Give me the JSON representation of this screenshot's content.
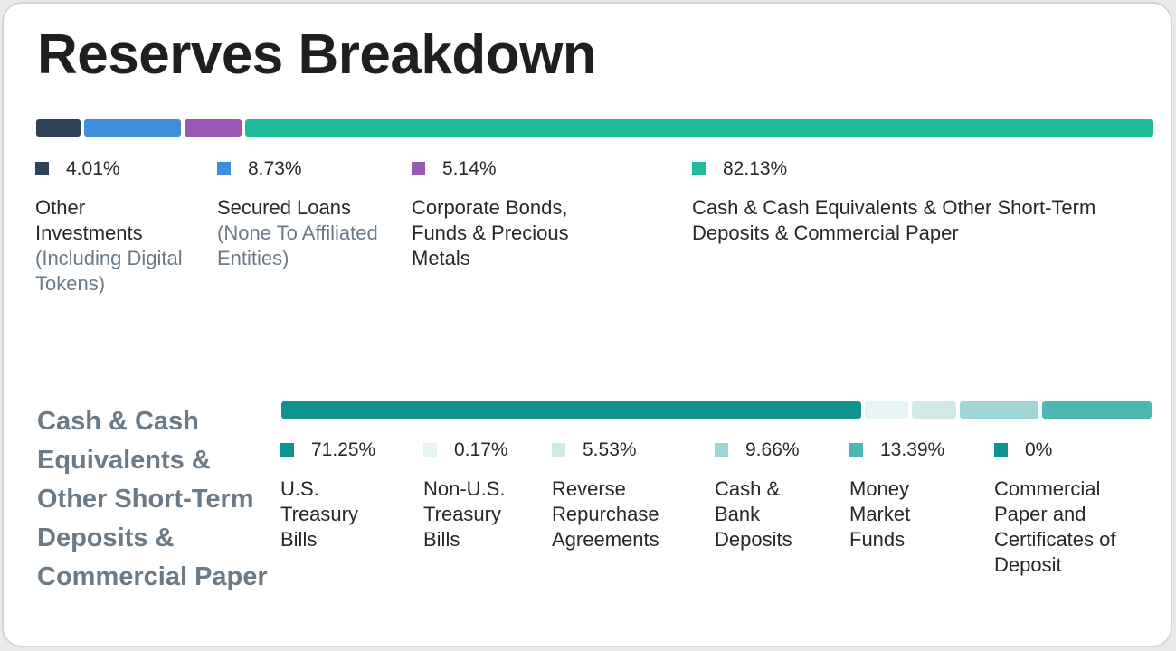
{
  "title": "Reserves Breakdown",
  "chart_data": [
    {
      "type": "bar",
      "orientation": "horizontal-stacked",
      "title": "Reserves Breakdown",
      "unit": "%",
      "categories": [
        "Other Investments (Including Digital Tokens)",
        "Secured Loans (None To Affiliated Entities)",
        "Corporate Bonds, Funds & Precious Metals",
        "Cash & Cash Equivalents & Other Short-Term Deposits & Commercial Paper"
      ],
      "values": [
        4.01,
        8.73,
        5.14,
        82.13
      ],
      "legend": [
        {
          "pct": "4.01%",
          "label_main": "Other Investments",
          "label_sub": "(Including Digital Tokens)",
          "color": "#2f4156"
        },
        {
          "pct": "8.73%",
          "label_main": "Secured Loans",
          "label_sub": "(None To Affiliated Entities)",
          "color": "#3d8fdb"
        },
        {
          "pct": "5.14%",
          "label_main": "Corporate Bonds, Funds & Precious Metals",
          "label_sub": "",
          "color": "#9b59b6"
        },
        {
          "pct": "82.13%",
          "label_main": "Cash & Cash Equivalents & Other Short-Term Deposits & Commercial Paper",
          "label_sub": "",
          "color": "#1fbc9c"
        }
      ]
    },
    {
      "type": "bar",
      "orientation": "horizontal-stacked",
      "title": "Cash & Cash Equivalents & Other Short-Term Deposits & Commercial Paper",
      "unit": "%",
      "categories": [
        "U.S. Treasury Bills",
        "Non-U.S. Treasury Bills",
        "Reverse Repurchase Agreements",
        "Cash & Bank Deposits",
        "Money Market Funds",
        "Commercial Paper and Certificates of Deposit"
      ],
      "values": [
        71.25,
        0.17,
        5.53,
        9.66,
        13.39,
        0
      ],
      "legend": [
        {
          "pct": "71.25%",
          "label_main": "U.S. Treasury Bills",
          "color": "#0e9391"
        },
        {
          "pct": "0.17%",
          "label_main": "Non-U.S. Treasury Bills",
          "color": "#e6f4f4"
        },
        {
          "pct": "5.53%",
          "label_main": "Reverse Repurchase Agreements",
          "color": "#cfe8e8"
        },
        {
          "pct": "9.66%",
          "label_main": "Cash & Bank Deposits",
          "color": "#9fd6d5"
        },
        {
          "pct": "13.39%",
          "label_main": "Money Market Funds",
          "color": "#4db7b4"
        },
        {
          "pct": "0%",
          "label_main": "Commercial Paper and Certificates of Deposit",
          "color": "#0e9391"
        }
      ]
    }
  ]
}
